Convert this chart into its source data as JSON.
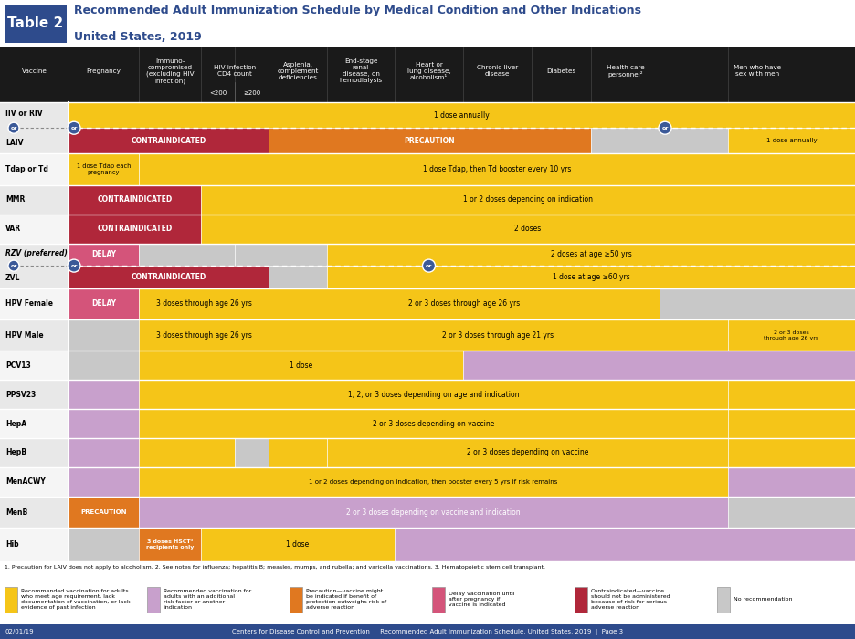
{
  "title_line1": "Recommended Adult Immunization Schedule by Medical Condition and Other Indications",
  "title_line2": "United States, 2019",
  "table_label": "Table 2",
  "colors": {
    "yellow": "#F5C518",
    "purple": "#C8A0CC",
    "red": "#B0273A",
    "orange": "#E07820",
    "pink": "#D4547A",
    "gray": "#C8C8C8",
    "white": "#FFFFFF",
    "black": "#000000",
    "dark_header": "#1A1A1A",
    "blue_circle": "#3B5998",
    "title_blue": "#2E4B8C",
    "row_bg_light": "#E8E8E8",
    "row_bg_white": "#F5F5F5"
  },
  "footer_left": "02/01/19",
  "footer_center": "Centers for Disease Control and Prevention  |  Recommended Adult Immunization Schedule, United States, 2019  |  Page 3",
  "footnotes": "1. Precaution for LAIV does not apply to alcoholism. 2. See notes for influenza; hepatitis B; measles, mumps, and rubella; and varicella vaccinations. 3. Hematopoietic stem cell transplant.",
  "legend": [
    {
      "color": "#F5C518",
      "text": "Recommended vaccination for adults\nwho meet age requirement, lack\ndocumentation of vaccination, or lack\nevidence of past infection"
    },
    {
      "color": "#C8A0CC",
      "text": "Recommended vaccination for\nadults with an additional\nrisk factor or another\nindication"
    },
    {
      "color": "#E07820",
      "text": "Precaution—vaccine might\nbe indicated if benefit of\nprotection outweighs risk of\nadverse reaction"
    },
    {
      "color": "#D4547A",
      "text": "Delay vaccination until\nafter pregnancy if\nvaccine is indicated"
    },
    {
      "color": "#B0273A",
      "text": "Contraindicated—vaccine\nshould not be administered\nbecause of risk for serious\nadverse reaction"
    },
    {
      "color": "#C8C8C8",
      "text": "No recommendation"
    }
  ]
}
